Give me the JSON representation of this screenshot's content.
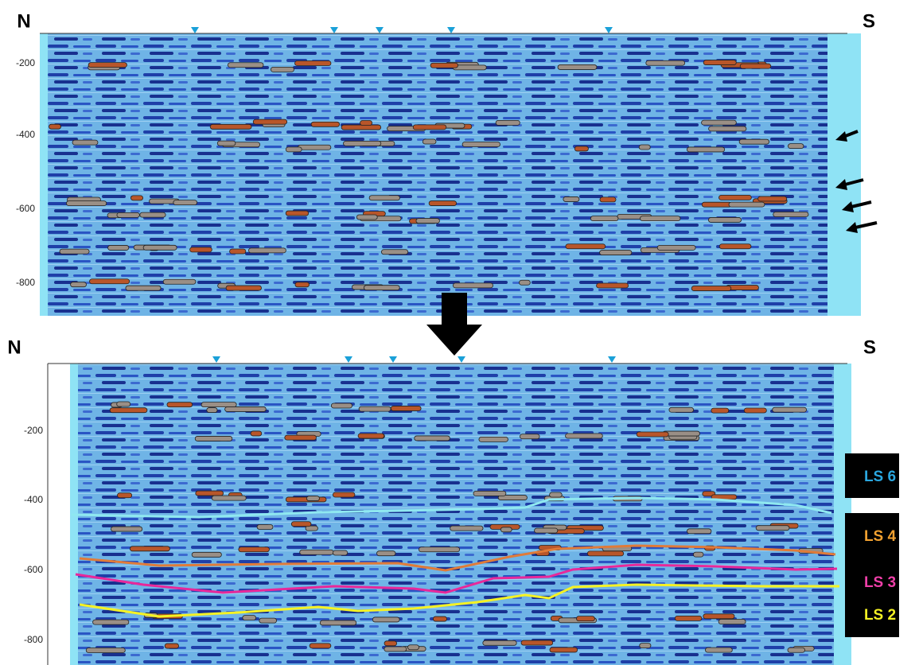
{
  "panels": [
    {
      "left_label": "N",
      "right_label": "S",
      "depth_ticks": [
        "-200",
        "-400",
        "-600",
        "-800"
      ]
    },
    {
      "left_label": "N",
      "right_label": "S",
      "depth_ticks": [
        "-200",
        "-400",
        "-600",
        "-800"
      ]
    }
  ],
  "horizon_labels": [
    "LS 6",
    "LS 4",
    "LS 3",
    "LS 2"
  ]
}
